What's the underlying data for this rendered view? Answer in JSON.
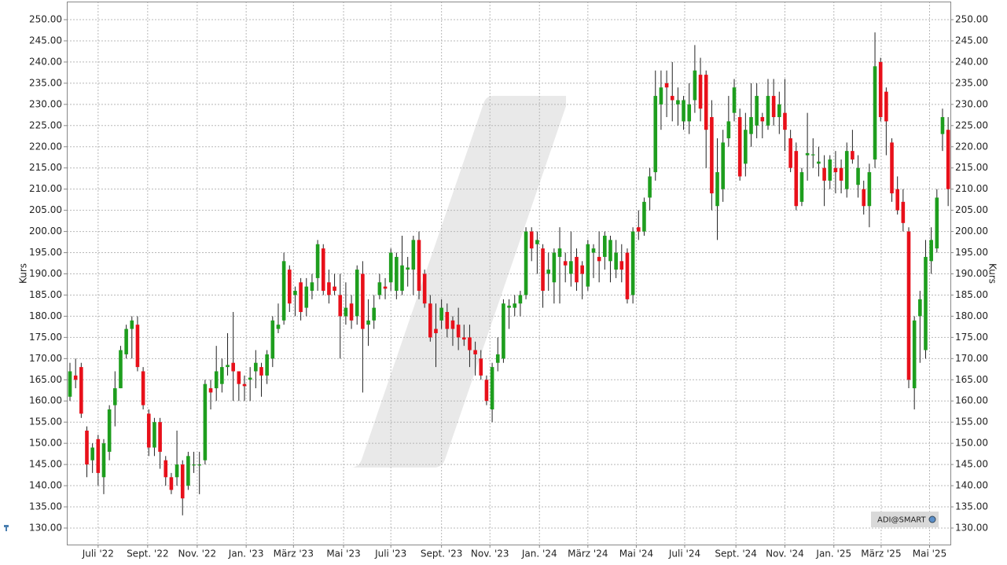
{
  "chart_data": {
    "type": "candlestick",
    "y_label": "Kurs",
    "source_label": "ADI@SMART",
    "up_color": "#1e9e1e",
    "down_color": "#e8101a",
    "grid": true,
    "open": [
      161,
      166,
      168,
      153,
      146,
      151,
      142,
      148,
      159,
      163,
      171,
      177,
      178,
      167,
      157,
      149,
      155,
      146,
      142,
      142,
      145,
      140,
      145,
      145,
      146,
      163,
      163,
      164,
      168,
      169,
      167,
      164,
      165,
      167,
      168,
      166,
      170,
      177,
      179,
      191,
      185,
      188,
      182,
      186,
      189,
      196,
      188,
      187,
      185,
      180,
      183,
      180,
      190,
      178,
      179,
      185,
      187,
      188,
      186,
      186,
      191,
      191,
      198,
      190,
      183,
      177,
      179,
      181,
      179,
      178,
      175,
      175,
      172,
      170,
      165,
      158,
      169,
      170,
      182,
      182,
      183,
      185,
      200,
      197,
      196,
      190,
      188,
      194,
      193,
      190,
      194,
      192,
      187,
      195,
      194,
      194,
      193,
      191,
      193,
      195,
      185,
      201,
      200,
      208,
      214,
      230,
      235,
      232,
      230,
      226,
      226,
      231,
      237,
      237,
      227,
      206,
      210,
      222,
      228,
      227,
      216,
      223,
      225,
      227,
      225,
      232,
      227,
      228,
      222,
      219,
      207,
      218,
      218,
      216,
      215,
      212,
      215,
      215,
      210,
      219,
      211,
      210,
      206,
      217,
      240,
      233,
      221,
      210,
      207,
      200,
      163,
      180,
      172,
      193,
      196,
      223,
      224
    ],
    "high": [
      169,
      170,
      169,
      154,
      150,
      152,
      151,
      159,
      167,
      173,
      178,
      180,
      180,
      168,
      158,
      156,
      156,
      147,
      143,
      153,
      146,
      148,
      148,
      148,
      165,
      165,
      173,
      170,
      176,
      181,
      167,
      166,
      168,
      172,
      169,
      172,
      180,
      183,
      195,
      192,
      187,
      189,
      189,
      190,
      198,
      197,
      191,
      190,
      190,
      188,
      185,
      192,
      193,
      184,
      185,
      190,
      189,
      196,
      195,
      199,
      194,
      199,
      200,
      191,
      185,
      183,
      184,
      183,
      180,
      182,
      178,
      178,
      174,
      172,
      166,
      169,
      175,
      184,
      184,
      185,
      186,
      201,
      201,
      200,
      197,
      195,
      196,
      201,
      195,
      200,
      196,
      193,
      198,
      197,
      200,
      200,
      199,
      198,
      197,
      196,
      201,
      205,
      208,
      215,
      238,
      238,
      238,
      240,
      234,
      232,
      235,
      244,
      241,
      238,
      231,
      222,
      224,
      232,
      236,
      229,
      228,
      235,
      235,
      228,
      236,
      236,
      233,
      236,
      224,
      221,
      215,
      228,
      222,
      220,
      218,
      218,
      219,
      217,
      221,
      224,
      218,
      212,
      216,
      247,
      241,
      234,
      222,
      213,
      210,
      201,
      180,
      186,
      198,
      201,
      210,
      229,
      227
    ],
    "low": [
      160,
      163,
      156,
      142,
      143,
      140,
      138,
      146,
      154,
      163,
      170,
      170,
      167,
      158,
      147,
      147,
      144,
      140,
      138,
      140,
      133,
      139,
      143,
      138,
      145,
      158,
      160,
      162,
      166,
      160,
      160,
      160,
      160,
      163,
      161,
      164,
      168,
      176,
      178,
      181,
      180,
      179,
      180,
      184,
      186,
      185,
      183,
      185,
      170,
      178,
      177,
      178,
      162,
      173,
      177,
      184,
      184,
      186,
      184,
      185,
      187,
      185,
      184,
      182,
      174,
      168,
      177,
      175,
      173,
      172,
      173,
      168,
      166,
      165,
      159,
      155,
      167,
      169,
      177,
      180,
      180,
      184,
      193,
      190,
      182,
      186,
      183,
      183,
      188,
      187,
      186,
      184,
      186,
      189,
      188,
      191,
      188,
      189,
      188,
      183,
      183,
      198,
      199,
      205,
      212,
      224,
      227,
      226,
      225,
      224,
      223,
      228,
      226,
      215,
      205,
      198,
      207,
      220,
      226,
      212,
      213,
      220,
      222,
      222,
      224,
      225,
      223,
      219,
      214,
      205,
      206,
      212,
      215,
      213,
      206,
      210,
      209,
      209,
      208,
      216,
      208,
      204,
      201,
      215,
      226,
      218,
      207,
      204,
      200,
      163,
      158,
      169,
      170,
      190,
      195,
      219,
      206
    ],
    "close": [
      167,
      165,
      157,
      145,
      149,
      143,
      150,
      158,
      163,
      172,
      177,
      179,
      168,
      159,
      149,
      155,
      148,
      142,
      139,
      145,
      137,
      147,
      145,
      145,
      164,
      162,
      167,
      168,
      168.5,
      167,
      164,
      163.5,
      165.5,
      169,
      166,
      171,
      179,
      178,
      193,
      183,
      186,
      181,
      187,
      188,
      197,
      186,
      185,
      186,
      180,
      182,
      179,
      191,
      177,
      179,
      182,
      188,
      186.5,
      195,
      194,
      192,
      191.5,
      198,
      186,
      183,
      175,
      176,
      182,
      177,
      177,
      175,
      174.5,
      172,
      171,
      166,
      160,
      168,
      171,
      183,
      182.5,
      183,
      185,
      200,
      196,
      198,
      186,
      191,
      195,
      196,
      192,
      193,
      188,
      190,
      197,
      196,
      193,
      199,
      198,
      195,
      191,
      184,
      200,
      200,
      207,
      213,
      232,
      234,
      234,
      231,
      231,
      231,
      230,
      238,
      229,
      224,
      209,
      214,
      221,
      226,
      234,
      213,
      224,
      227,
      232,
      226,
      232,
      227,
      230,
      224,
      215,
      206,
      214,
      218.5,
      218.2,
      216.5,
      212,
      217,
      214,
      212,
      219,
      217,
      215,
      206,
      214,
      239,
      227,
      226,
      209,
      205,
      202,
      165,
      179,
      184,
      194,
      198,
      208,
      227,
      210
    ],
    "xlim": [
      -0.56,
      156.4
    ],
    "xticks": [
      {
        "value": 5.0,
        "label": "Juli '22"
      },
      {
        "value": 13.8,
        "label": "Sept. '22"
      },
      {
        "value": 22.6,
        "label": "Nov. '22"
      },
      {
        "value": 31.3,
        "label": "Jan. '23"
      },
      {
        "value": 39.7,
        "label": "März '23"
      },
      {
        "value": 48.6,
        "label": "Mai '23"
      },
      {
        "value": 57.0,
        "label": "Juli '23"
      },
      {
        "value": 66.0,
        "label": "Sept. '23"
      },
      {
        "value": 74.6,
        "label": "Nov. '23"
      },
      {
        "value": 83.4,
        "label": "Jan. '24"
      },
      {
        "value": 92.0,
        "label": "März '24"
      },
      {
        "value": 100.6,
        "label": "Mai '24"
      },
      {
        "value": 109.2,
        "label": "Juli '24"
      },
      {
        "value": 118.3,
        "label": "Sept. '24"
      },
      {
        "value": 127.0,
        "label": "Nov. '24"
      },
      {
        "value": 135.7,
        "label": "Jan. '25"
      },
      {
        "value": 144.1,
        "label": "März '25"
      },
      {
        "value": 152.7,
        "label": "Mai '25"
      }
    ],
    "ylim": [
      126.1,
      254.27
    ],
    "yticks": [
      {
        "value": 130,
        "label": "130.00"
      },
      {
        "value": 135,
        "label": "135.00"
      },
      {
        "value": 140,
        "label": "140.00"
      },
      {
        "value": 145,
        "label": "145.00"
      },
      {
        "value": 150,
        "label": "150.00"
      },
      {
        "value": 155,
        "label": "155.00"
      },
      {
        "value": 160,
        "label": "160.00"
      },
      {
        "value": 165,
        "label": "165.00"
      },
      {
        "value": 170,
        "label": "170.00"
      },
      {
        "value": 175,
        "label": "175.00"
      },
      {
        "value": 180,
        "label": "180.00"
      },
      {
        "value": 185,
        "label": "185.00"
      },
      {
        "value": 190,
        "label": "190.00"
      },
      {
        "value": 195,
        "label": "195.00"
      },
      {
        "value": 200,
        "label": "200.00"
      },
      {
        "value": 205,
        "label": "205.00"
      },
      {
        "value": 210,
        "label": "210.00"
      },
      {
        "value": 215,
        "label": "215.00"
      },
      {
        "value": 220,
        "label": "220.00"
      },
      {
        "value": 225,
        "label": "225.00"
      },
      {
        "value": 230,
        "label": "230.00"
      },
      {
        "value": 235,
        "label": "235.00"
      },
      {
        "value": 240,
        "label": "240.00"
      },
      {
        "value": 245,
        "label": "245.00"
      },
      {
        "value": 250,
        "label": "250.00"
      }
    ]
  }
}
